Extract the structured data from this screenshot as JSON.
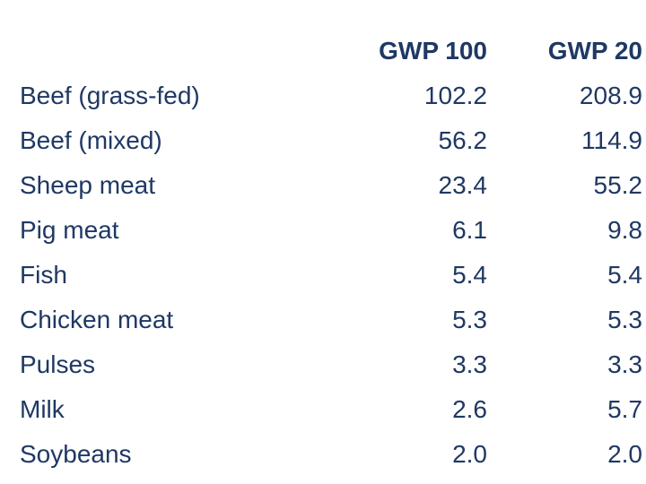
{
  "colors": {
    "text": "#1F3864",
    "background": "#FFFFFF"
  },
  "table": {
    "columns": [
      "GWP 100",
      "GWP 20"
    ],
    "rows": [
      {
        "label": "Beef (grass-fed)",
        "gwp100": "102.2",
        "gwp20": "208.9"
      },
      {
        "label": "Beef (mixed)",
        "gwp100": "56.2",
        "gwp20": "114.9"
      },
      {
        "label": "Sheep meat",
        "gwp100": "23.4",
        "gwp20": "55.2"
      },
      {
        "label": "Pig meat",
        "gwp100": "6.1",
        "gwp20": "9.8"
      },
      {
        "label": "Fish",
        "gwp100": "5.4",
        "gwp20": "5.4"
      },
      {
        "label": "Chicken meat",
        "gwp100": "5.3",
        "gwp20": "5.3"
      },
      {
        "label": "Pulses",
        "gwp100": "3.3",
        "gwp20": "3.3"
      },
      {
        "label": "Milk",
        "gwp100": "2.6",
        "gwp20": "5.7"
      },
      {
        "label": "Soybeans",
        "gwp100": "2.0",
        "gwp20": "2.0"
      }
    ]
  }
}
